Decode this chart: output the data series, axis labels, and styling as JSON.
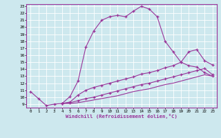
{
  "xlabel": "Windchill (Refroidissement éolien,°C)",
  "bg_color": "#cde8ee",
  "line_color": "#993399",
  "xmin": 0,
  "xmax": 23,
  "ymin": 9,
  "ymax": 23,
  "curve1_x": [
    0,
    1,
    2,
    3,
    4,
    5,
    6,
    7,
    8,
    9,
    10,
    11,
    12,
    13,
    14,
    15,
    16,
    17,
    18,
    19,
    20,
    21,
    22,
    23
  ],
  "curve1_y": [
    10.8,
    9.8,
    8.8,
    9.0,
    9.1,
    10.1,
    12.3,
    17.2,
    19.5,
    21.0,
    21.5,
    21.7,
    21.5,
    22.3,
    23.0,
    22.6,
    21.5,
    18.0,
    16.5,
    15.0,
    14.5,
    14.3,
    13.5,
    13.0
  ],
  "curve2_x": [
    4,
    5,
    6,
    7,
    8,
    9,
    10,
    11,
    12,
    13,
    14,
    15,
    16,
    17,
    18,
    19,
    20,
    21,
    22,
    23
  ],
  "curve2_y": [
    9.1,
    9.3,
    10.3,
    11.0,
    11.4,
    11.7,
    12.0,
    12.3,
    12.6,
    12.9,
    13.3,
    13.5,
    13.8,
    14.2,
    14.5,
    15.0,
    16.5,
    16.8,
    15.2,
    14.6
  ],
  "curve3_x": [
    4,
    5,
    6,
    7,
    8,
    9,
    10,
    11,
    12,
    13,
    14,
    15,
    16,
    17,
    18,
    19,
    20,
    21,
    22,
    23
  ],
  "curve3_y": [
    9.1,
    9.2,
    9.5,
    9.8,
    10.0,
    10.3,
    10.6,
    10.9,
    11.2,
    11.5,
    11.8,
    12.0,
    12.3,
    12.6,
    12.9,
    13.2,
    13.5,
    13.8,
    14.1,
    13.2
  ],
  "curve4_x": [
    4,
    5,
    6,
    7,
    8,
    9,
    10,
    11,
    12,
    13,
    14,
    15,
    16,
    17,
    18,
    19,
    20,
    21,
    22,
    23
  ],
  "curve4_y": [
    9.1,
    9.1,
    9.2,
    9.4,
    9.6,
    9.8,
    10.0,
    10.2,
    10.5,
    10.8,
    11.0,
    11.2,
    11.5,
    11.8,
    12.0,
    12.3,
    12.6,
    12.9,
    13.2,
    13.0
  ],
  "ytick_labels": [
    "9",
    "10",
    "11",
    "12",
    "13",
    "14",
    "15",
    "16",
    "17",
    "18",
    "19",
    "20",
    "21",
    "22",
    "23"
  ],
  "xtick_labels": [
    "0",
    "1",
    "2",
    "3",
    "4",
    "5",
    "6",
    "7",
    "8",
    "9",
    "10",
    "11",
    "12",
    "13",
    "14",
    "15",
    "16",
    "17",
    "18",
    "19",
    "20",
    "21",
    "22",
    "23"
  ]
}
